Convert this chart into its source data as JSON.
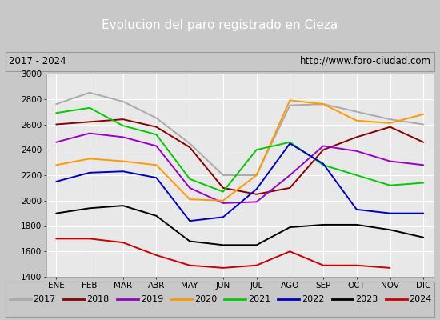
{
  "title": "Evolucion del paro registrado en Cieza",
  "subtitle_left": "2017 - 2024",
  "subtitle_right": "http://www.foro-ciudad.com",
  "months": [
    "ENE",
    "FEB",
    "MAR",
    "ABR",
    "MAY",
    "JUN",
    "JUL",
    "AGO",
    "SEP",
    "OCT",
    "NOV",
    "DIC"
  ],
  "series": {
    "2017": {
      "color": "#aaaaaa",
      "data": [
        2760,
        2850,
        2780,
        2650,
        2450,
        2200,
        2200,
        2750,
        2760,
        2700,
        2640,
        2600
      ]
    },
    "2018": {
      "color": "#8b0000",
      "data": [
        2600,
        2620,
        2640,
        2580,
        2420,
        2100,
        2050,
        2100,
        2400,
        2500,
        2580,
        2460
      ]
    },
    "2019": {
      "color": "#9900cc",
      "data": [
        2460,
        2530,
        2500,
        2430,
        2100,
        1980,
        1990,
        2200,
        2430,
        2390,
        2310,
        2280
      ]
    },
    "2020": {
      "color": "#ff9900",
      "data": [
        2280,
        2330,
        2310,
        2280,
        2010,
        2000,
        2200,
        2790,
        2760,
        2630,
        2610,
        2680
      ]
    },
    "2021": {
      "color": "#00cc00",
      "data": [
        2690,
        2730,
        2590,
        2520,
        2170,
        2070,
        2400,
        2460,
        2280,
        2200,
        2120,
        2140
      ]
    },
    "2022": {
      "color": "#0000cc",
      "data": [
        2150,
        2220,
        2230,
        2180,
        1840,
        1870,
        2090,
        2450,
        2290,
        1930,
        1900,
        1900
      ]
    },
    "2023": {
      "color": "#000000",
      "data": [
        1900,
        1940,
        1960,
        1880,
        1680,
        1650,
        1650,
        1790,
        1810,
        1810,
        1770,
        1710
      ]
    },
    "2024": {
      "color": "#cc0000",
      "data": [
        1700,
        1700,
        1670,
        1570,
        1490,
        1470,
        1490,
        1600,
        1490,
        1490,
        1470,
        null
      ]
    }
  },
  "ylim": [
    1400,
    3000
  ],
  "yticks": [
    1400,
    1600,
    1800,
    2000,
    2200,
    2400,
    2600,
    2800,
    3000
  ],
  "bg_title": "#4477cc",
  "bg_info": "#cccccc",
  "bg_plot": "#e8e8e8",
  "grid_color": "#ffffff",
  "fig_bg": "#c8c8c8"
}
